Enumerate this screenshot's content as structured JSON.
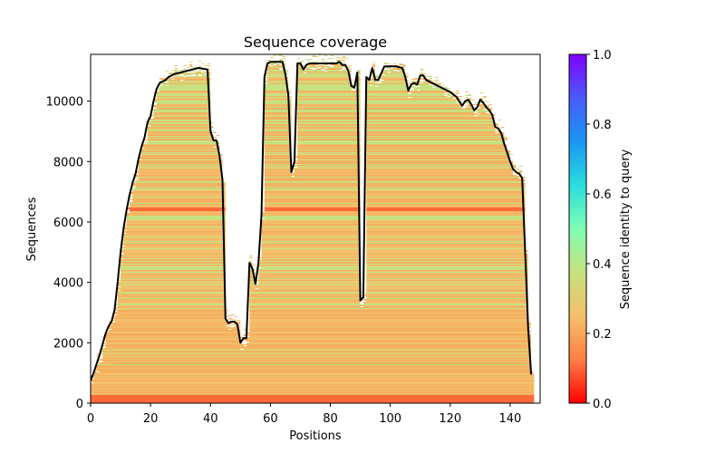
{
  "chart_data": {
    "type": "heatmap",
    "title": "Sequence coverage",
    "xlabel": "Positions",
    "ylabel": "Sequences",
    "xlim": [
      0,
      150
    ],
    "ylim": [
      0,
      11550
    ],
    "xticks": [
      0,
      20,
      40,
      60,
      80,
      100,
      120,
      140
    ],
    "yticks": [
      0,
      2000,
      4000,
      6000,
      8000,
      10000
    ],
    "colorbar": {
      "label": "Sequence identity to query",
      "range": [
        0,
        1
      ],
      "ticks": [
        "0.0",
        "0.2",
        "0.4",
        "0.6",
        "0.8",
        "1.0"
      ],
      "colormap": "rainbow_r",
      "stops": [
        "#ff0000",
        "#ff7f45",
        "#f5bf6a",
        "#c6e17f",
        "#7ffeb3",
        "#2adddd",
        "#1996f3",
        "#4a5bfa",
        "#8000ff"
      ]
    },
    "coverage_line": {
      "name": "coverage",
      "color": "#000000",
      "x": [
        0,
        1,
        2,
        3,
        4,
        5,
        6,
        7,
        8,
        9,
        10,
        11,
        12,
        13,
        14,
        15,
        16,
        17,
        18,
        19,
        20,
        21,
        22,
        23,
        24,
        25,
        26,
        27,
        28,
        30,
        32,
        34,
        36,
        39,
        40,
        41,
        42,
        43,
        44,
        45,
        46,
        47,
        48,
        49,
        50,
        51,
        52,
        53,
        54,
        55,
        56,
        57,
        58,
        59,
        60,
        62,
        64,
        65,
        66,
        67,
        68,
        69,
        70,
        71,
        72,
        73,
        75,
        78,
        80,
        82,
        83,
        84,
        85,
        86,
        87,
        88,
        89,
        90,
        91,
        92,
        93,
        94,
        95,
        96,
        98,
        100,
        102,
        104,
        105,
        106,
        107,
        108,
        109,
        110,
        111,
        112,
        114,
        116,
        118,
        120,
        122,
        124,
        125,
        126,
        127,
        128,
        129,
        130,
        131,
        132,
        133,
        134,
        135,
        136,
        137,
        138,
        139,
        140,
        141,
        142,
        143,
        144,
        145,
        146,
        147,
        148,
        149
      ],
      "y": [
        750,
        1000,
        1300,
        1600,
        1950,
        2300,
        2550,
        2700,
        3100,
        4000,
        5000,
        5800,
        6400,
        6900,
        7300,
        7600,
        8100,
        8500,
        8800,
        9300,
        9500,
        10000,
        10400,
        10600,
        10650,
        10700,
        10800,
        10850,
        10900,
        10950,
        11000,
        11050,
        11100,
        11050,
        9000,
        8700,
        8700,
        8200,
        7400,
        2800,
        2650,
        2700,
        2700,
        2600,
        2000,
        2150,
        2150,
        4650,
        4450,
        3950,
        4650,
        6200,
        10800,
        11250,
        11300,
        11300,
        11300,
        10900,
        10200,
        7650,
        8000,
        11250,
        11250,
        11050,
        11200,
        11250,
        11250,
        11250,
        11250,
        11250,
        11300,
        11200,
        11200,
        11000,
        10500,
        10450,
        10950,
        3400,
        3500,
        10800,
        10700,
        11100,
        10700,
        10700,
        11150,
        11150,
        11150,
        11100,
        10800,
        10350,
        10550,
        10600,
        10550,
        10850,
        10850,
        10700,
        10600,
        10500,
        10400,
        10300,
        10150,
        9850,
        10000,
        10050,
        9900,
        9700,
        9800,
        10050,
        9950,
        9800,
        9700,
        9550,
        9150,
        9100,
        8950,
        8600,
        8300,
        8000,
        7750,
        7650,
        7600,
        7450,
        5000,
        2500,
        950
      ]
    },
    "band_colors": {
      "low_identity_bottom": "#ff6a3a",
      "mid_orange": "#f5b060",
      "light_orange": "#f2c06c",
      "yellow_green": "#c6e17f"
    }
  }
}
